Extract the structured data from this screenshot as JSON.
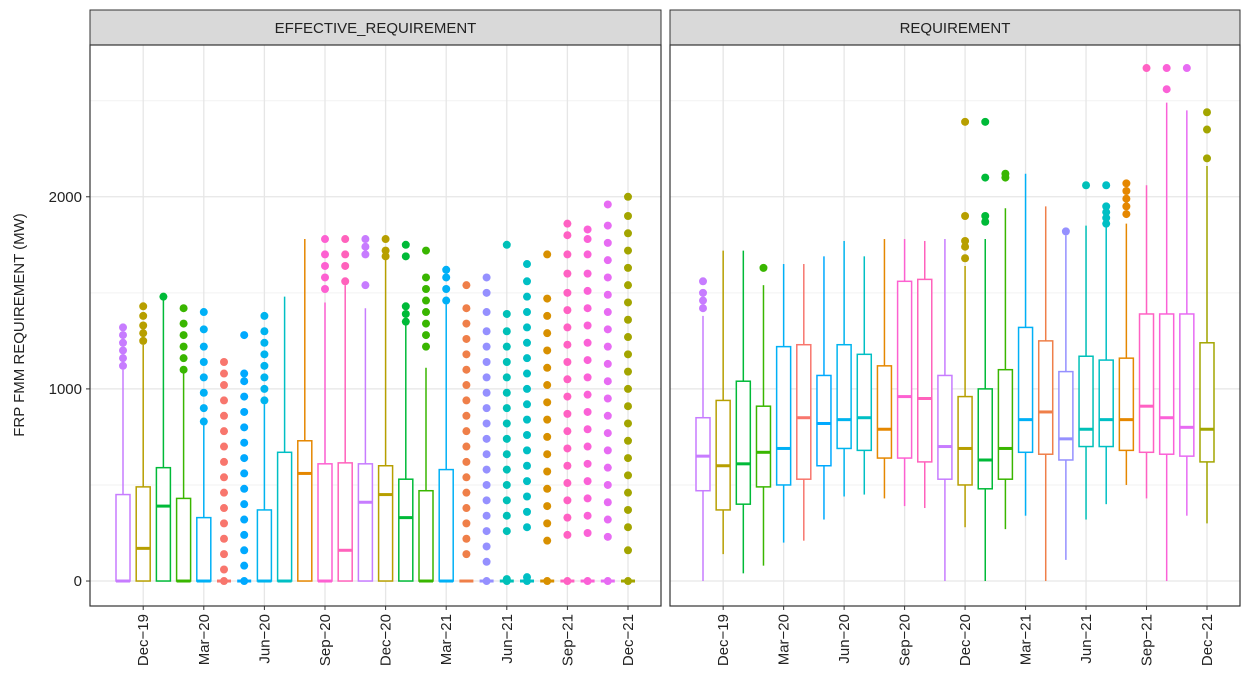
{
  "chart_data": [
    {
      "type": "boxplot",
      "title": "EFFECTIVE_REQUIREMENT",
      "ylabel": "FRP FMM REQUIREMENT (MW)",
      "categories": [
        null,
        "Dec−19",
        null,
        null,
        "Mar−20",
        null,
        null,
        "Jun−20",
        null,
        null,
        "Sep−20",
        null,
        null,
        "Dec−20",
        null,
        null,
        "Mar−21",
        null,
        null,
        "Jun−21",
        null,
        null,
        "Sep−21",
        null,
        null,
        "Dec−21"
      ],
      "ylim": [
        -130,
        2790
      ],
      "yticks": [
        0,
        1000,
        2000
      ],
      "minor_yticks": [
        500,
        1500,
        2500
      ],
      "grid": true,
      "boxes": [
        {
          "color": "#c77cff",
          "low": 0,
          "q1": 0,
          "median": 0,
          "q3": 450,
          "high": 1100,
          "outliers": [
            1120,
            1160,
            1200,
            1240,
            1280,
            1320
          ]
        },
        {
          "color": "#b79f00",
          "low": 0,
          "q1": 0,
          "median": 170,
          "q3": 490,
          "high": 1230,
          "outliers": [
            1250,
            1290,
            1330,
            1380,
            1430
          ]
        },
        {
          "color": "#00ba38",
          "low": 0,
          "q1": 0,
          "median": 390,
          "q3": 590,
          "high": 1470,
          "outliers": [
            1480
          ]
        },
        {
          "color": "#39b600",
          "low": 0,
          "q1": 0,
          "median": 0,
          "q3": 430,
          "high": 1080,
          "outliers": [
            1100,
            1160,
            1220,
            1280,
            1340,
            1420
          ]
        },
        {
          "color": "#00b0f6",
          "low": 0,
          "q1": 0,
          "median": 0,
          "q3": 330,
          "high": 810,
          "outliers": [
            830,
            900,
            980,
            1060,
            1140,
            1220,
            1310,
            1400
          ]
        },
        {
          "color": "#f8766d",
          "low": 0,
          "q1": 0,
          "median": 0,
          "q3": 0,
          "high": 0,
          "outliers": [
            0,
            60,
            140,
            220,
            300,
            380,
            460,
            540,
            620,
            700,
            780,
            860,
            940,
            1020,
            1080,
            1140
          ]
        },
        {
          "color": "#00a9ff",
          "low": 0,
          "q1": 0,
          "median": 0,
          "q3": 0,
          "high": 0,
          "outliers": [
            0,
            80,
            160,
            240,
            320,
            400,
            480,
            560,
            640,
            720,
            800,
            880,
            960,
            1040,
            1080,
            1280
          ]
        },
        {
          "color": "#00b4ef",
          "low": 0,
          "q1": 0,
          "median": 0,
          "q3": 370,
          "high": 920,
          "outliers": [
            940,
            1000,
            1060,
            1120,
            1180,
            1240,
            1300,
            1380
          ]
        },
        {
          "color": "#00bfc4",
          "low": 0,
          "q1": 0,
          "median": 0,
          "q3": 670,
          "high": 1480,
          "outliers": []
        },
        {
          "color": "#e58700",
          "low": 0,
          "q1": 0,
          "median": 560,
          "q3": 730,
          "high": 1780,
          "outliers": []
        },
        {
          "color": "#fd61d1",
          "low": 0,
          "q1": 0,
          "median": 0,
          "q3": 610,
          "high": 1450,
          "outliers": [
            1520,
            1580,
            1640,
            1700,
            1780
          ]
        },
        {
          "color": "#ff62bc",
          "low": 0,
          "q1": 0,
          "median": 160,
          "q3": 615,
          "high": 1540,
          "outliers": [
            1560,
            1640,
            1700,
            1780
          ]
        },
        {
          "color": "#c77cff",
          "low": 0,
          "q1": 0,
          "median": 410,
          "q3": 610,
          "high": 1420,
          "outliers": [
            1540,
            1700,
            1740,
            1780
          ]
        },
        {
          "color": "#b79f00",
          "low": 0,
          "q1": 0,
          "median": 450,
          "q3": 600,
          "high": 1680,
          "outliers": [
            1690,
            1720,
            1780
          ]
        },
        {
          "color": "#00ba38",
          "low": 0,
          "q1": 0,
          "median": 330,
          "q3": 530,
          "high": 1330,
          "outliers": [
            1350,
            1390,
            1430,
            1690,
            1750
          ]
        },
        {
          "color": "#39b600",
          "low": 0,
          "q1": 0,
          "median": 0,
          "q3": 470,
          "high": 1110,
          "outliers": [
            1220,
            1280,
            1340,
            1400,
            1460,
            1520,
            1580,
            1720
          ]
        },
        {
          "color": "#00b0f6",
          "low": 0,
          "q1": 0,
          "median": 0,
          "q3": 580,
          "high": 1440,
          "outliers": [
            1460,
            1520,
            1580,
            1620
          ]
        },
        {
          "color": "#ef7f49",
          "low": 0,
          "q1": 0,
          "median": 0,
          "q3": 0,
          "high": 0,
          "outliers": [
            140,
            220,
            300,
            380,
            460,
            540,
            620,
            700,
            780,
            860,
            940,
            1020,
            1100,
            1180,
            1260,
            1340,
            1420,
            1540
          ]
        },
        {
          "color": "#9590ff",
          "low": 0,
          "q1": 0,
          "median": 0,
          "q3": 0,
          "high": 0,
          "outliers": [
            0,
            100,
            180,
            260,
            340,
            420,
            500,
            580,
            660,
            740,
            820,
            900,
            980,
            1060,
            1140,
            1220,
            1300,
            1400,
            1500,
            1580
          ]
        },
        {
          "color": "#00c0b8",
          "low": 0,
          "q1": 0,
          "median": 0,
          "q3": 0,
          "high": 0,
          "outliers": [
            0,
            10,
            260,
            340,
            420,
            500,
            580,
            660,
            740,
            820,
            900,
            980,
            1060,
            1140,
            1220,
            1300,
            1390,
            1750
          ]
        },
        {
          "color": "#00bfc4",
          "low": 0,
          "q1": 0,
          "median": 0,
          "q3": 0,
          "high": 0,
          "outliers": [
            0,
            20,
            280,
            360,
            440,
            520,
            600,
            680,
            760,
            840,
            920,
            1000,
            1080,
            1160,
            1240,
            1320,
            1400,
            1480,
            1560,
            1650
          ]
        },
        {
          "color": "#d89000",
          "low": 0,
          "q1": 0,
          "median": 0,
          "q3": 0,
          "high": 0,
          "outliers": [
            0,
            210,
            300,
            390,
            480,
            570,
            660,
            750,
            840,
            930,
            1020,
            1110,
            1200,
            1290,
            1380,
            1470,
            1700
          ]
        },
        {
          "color": "#ff61c3",
          "low": 0,
          "q1": 0,
          "median": 0,
          "q3": 0,
          "high": 0,
          "outliers": [
            0,
            240,
            330,
            420,
            510,
            600,
            690,
            780,
            870,
            960,
            1050,
            1140,
            1230,
            1320,
            1410,
            1500,
            1600,
            1700,
            1800,
            1860
          ]
        },
        {
          "color": "#fb61d7",
          "low": 0,
          "q1": 0,
          "median": 0,
          "q3": 0,
          "high": 0,
          "outliers": [
            0,
            250,
            340,
            430,
            520,
            610,
            700,
            790,
            880,
            970,
            1060,
            1150,
            1240,
            1330,
            1420,
            1510,
            1600,
            1700,
            1780,
            1830
          ]
        },
        {
          "color": "#e76bf3",
          "low": 0,
          "q1": 0,
          "median": 0,
          "q3": 0,
          "high": 0,
          "outliers": [
            0,
            230,
            320,
            410,
            500,
            590,
            680,
            770,
            860,
            950,
            1040,
            1130,
            1220,
            1310,
            1400,
            1490,
            1580,
            1670,
            1760,
            1850,
            1960
          ]
        },
        {
          "color": "#a3a500",
          "low": 0,
          "q1": 0,
          "median": 0,
          "q3": 0,
          "high": 0,
          "outliers": [
            0,
            160,
            280,
            370,
            460,
            550,
            640,
            730,
            820,
            910,
            1000,
            1090,
            1180,
            1270,
            1360,
            1450,
            1540,
            1630,
            1720,
            1810,
            1900,
            2000
          ]
        }
      ]
    },
    {
      "type": "boxplot",
      "title": "REQUIREMENT",
      "categories": [
        null,
        "Dec−19",
        null,
        null,
        "Mar−20",
        null,
        null,
        "Jun−20",
        null,
        null,
        "Sep−20",
        null,
        null,
        "Dec−20",
        null,
        null,
        "Mar−21",
        null,
        null,
        "Jun−21",
        null,
        null,
        "Sep−21",
        null,
        null,
        "Dec−21"
      ],
      "ylim": [
        -130,
        2790
      ],
      "yticks": [
        0,
        1000,
        2000
      ],
      "minor_yticks": [
        500,
        1500,
        2500
      ],
      "grid": true,
      "boxes": [
        {
          "color": "#c77cff",
          "low": 0,
          "q1": 470,
          "median": 650,
          "q3": 850,
          "high": 1380,
          "outliers": [
            1420,
            1460,
            1500,
            1560
          ]
        },
        {
          "color": "#b79f00",
          "low": 140,
          "q1": 370,
          "median": 600,
          "q3": 940,
          "high": 1720,
          "outliers": []
        },
        {
          "color": "#00ba38",
          "low": 40,
          "q1": 400,
          "median": 610,
          "q3": 1040,
          "high": 1720,
          "outliers": []
        },
        {
          "color": "#39b600",
          "low": 80,
          "q1": 490,
          "median": 670,
          "q3": 910,
          "high": 1540,
          "outliers": [
            1630
          ]
        },
        {
          "color": "#00b0f6",
          "low": 200,
          "q1": 500,
          "median": 690,
          "q3": 1220,
          "high": 1650,
          "outliers": []
        },
        {
          "color": "#f8766d",
          "low": 210,
          "q1": 530,
          "median": 850,
          "q3": 1230,
          "high": 1650,
          "outliers": []
        },
        {
          "color": "#00a9ff",
          "low": 320,
          "q1": 600,
          "median": 820,
          "q3": 1070,
          "high": 1690,
          "outliers": []
        },
        {
          "color": "#00b4ef",
          "low": 440,
          "q1": 690,
          "median": 840,
          "q3": 1230,
          "high": 1770,
          "outliers": []
        },
        {
          "color": "#00bfc4",
          "low": 450,
          "q1": 680,
          "median": 850,
          "q3": 1180,
          "high": 1690,
          "outliers": []
        },
        {
          "color": "#e58700",
          "low": 430,
          "q1": 640,
          "median": 790,
          "q3": 1120,
          "high": 1780,
          "outliers": []
        },
        {
          "color": "#fd61d1",
          "low": 390,
          "q1": 640,
          "median": 960,
          "q3": 1560,
          "high": 1780,
          "outliers": []
        },
        {
          "color": "#ff62bc",
          "low": 380,
          "q1": 620,
          "median": 950,
          "q3": 1570,
          "high": 1770,
          "outliers": []
        },
        {
          "color": "#c77cff",
          "low": 0,
          "q1": 530,
          "median": 700,
          "q3": 1070,
          "high": 1780,
          "outliers": []
        },
        {
          "color": "#b79f00",
          "low": 280,
          "q1": 500,
          "median": 690,
          "q3": 960,
          "high": 1640,
          "outliers": [
            1680,
            1740,
            1770,
            1900,
            2390
          ]
        },
        {
          "color": "#00ba38",
          "low": 0,
          "q1": 480,
          "median": 630,
          "q3": 1000,
          "high": 1780,
          "outliers": [
            1870,
            1900,
            2100,
            2390
          ]
        },
        {
          "color": "#39b600",
          "low": 270,
          "q1": 530,
          "median": 690,
          "q3": 1100,
          "high": 1940,
          "outliers": [
            2100,
            2120
          ]
        },
        {
          "color": "#00b0f6",
          "low": 340,
          "q1": 670,
          "median": 840,
          "q3": 1320,
          "high": 2120,
          "outliers": []
        },
        {
          "color": "#ef7f49",
          "low": 0,
          "q1": 660,
          "median": 880,
          "q3": 1250,
          "high": 1950,
          "outliers": []
        },
        {
          "color": "#9590ff",
          "low": 110,
          "q1": 630,
          "median": 740,
          "q3": 1090,
          "high": 1800,
          "outliers": [
            1820
          ]
        },
        {
          "color": "#00c0b8",
          "low": 320,
          "q1": 700,
          "median": 790,
          "q3": 1170,
          "high": 1850,
          "outliers": [
            2060
          ]
        },
        {
          "color": "#00bfc4",
          "low": 400,
          "q1": 700,
          "median": 840,
          "q3": 1150,
          "high": 1840,
          "outliers": [
            1860,
            1890,
            1920,
            1950,
            2060
          ]
        },
        {
          "color": "#e58700",
          "low": 500,
          "q1": 680,
          "median": 840,
          "q3": 1160,
          "high": 1860,
          "outliers": [
            1910,
            1950,
            1990,
            2030,
            2070
          ]
        },
        {
          "color": "#ff61c3",
          "low": 430,
          "q1": 670,
          "median": 910,
          "q3": 1390,
          "high": 2060,
          "outliers": [
            2670
          ]
        },
        {
          "color": "#fb61d7",
          "low": 0,
          "q1": 660,
          "median": 850,
          "q3": 1390,
          "high": 2490,
          "outliers": [
            2560,
            2670
          ]
        },
        {
          "color": "#e76bf3",
          "low": 340,
          "q1": 650,
          "median": 800,
          "q3": 1390,
          "high": 2450,
          "outliers": [
            2670
          ]
        },
        {
          "color": "#a3a500",
          "low": 300,
          "q1": 620,
          "median": 790,
          "q3": 1240,
          "high": 2160,
          "outliers": [
            2200,
            2350,
            2440
          ]
        }
      ]
    }
  ]
}
